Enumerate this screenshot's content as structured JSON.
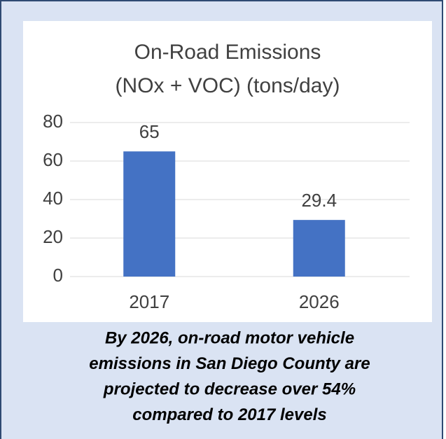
{
  "chart_data": {
    "type": "bar",
    "title": [
      "On-Road Emissions",
      "(NOx + VOC) (tons/day)"
    ],
    "categories": [
      "2017",
      "2026"
    ],
    "values": [
      65,
      29.4
    ],
    "color": "#4472c4",
    "ylim": [
      0,
      80
    ],
    "yticks": [
      0,
      20,
      40,
      60,
      80
    ],
    "grid": true,
    "caption": [
      "By 2026, on-road motor vehicle",
      "emissions in San Diego County are",
      "projected to decrease over 54%",
      "compared to 2017 levels"
    ]
  }
}
